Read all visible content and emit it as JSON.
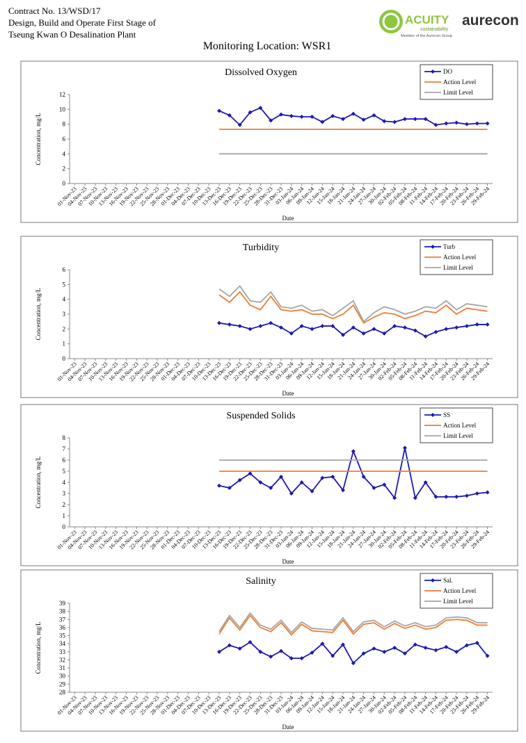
{
  "header": {
    "contract": [
      "Contract No. 13/WSD/17",
      "Design, Build and Operate First Stage of",
      "Tseung Kwan O Desalination Plant"
    ],
    "logo_acuity": "ACUITY",
    "logo_tagline": "sustainability",
    "logo_member": "Member of the Aurecon Group",
    "logo_aurecon": "aurecon",
    "title": "Monitoring Location: WSR1"
  },
  "chart_data": [
    {
      "type": "line",
      "title": "Dissolved Oxygen",
      "y_label": "Concentration, mg/L",
      "x_label": "Date",
      "categories": [
        "01-Nov-23",
        "04-Nov-23",
        "07-Nov-23",
        "10-Nov-23",
        "13-Nov-23",
        "16-Nov-23",
        "19-Nov-23",
        "22-Nov-23",
        "25-Nov-23",
        "28-Nov-23",
        "01-Dec-23",
        "04-Dec-23",
        "07-Dec-23",
        "10-Dec-23",
        "13-Dec-23",
        "16-Dec-23",
        "19-Dec-23",
        "22-Dec-23",
        "25-Dec-23",
        "28-Dec-23",
        "31-Dec-23",
        "03-Jan-24",
        "06-Jan-24",
        "09-Jan-24",
        "12-Jan-24",
        "15-Jan-24",
        "18-Jan-24",
        "21-Jan-24",
        "24-Jan-24",
        "27-Jan-24",
        "30-Jan-24",
        "02-Feb-24",
        "05-Feb-24",
        "08-Feb-24",
        "11-Feb-24",
        "14-Feb-24",
        "17-Feb-24",
        "20-Feb-24",
        "23-Feb-24",
        "26-Feb-24",
        "29-Feb-24"
      ],
      "series": [
        {
          "name": "DO",
          "color": "#1a1ab0",
          "marker": "diamond",
          "values": [
            null,
            null,
            null,
            null,
            null,
            null,
            null,
            null,
            null,
            null,
            null,
            null,
            null,
            null,
            9.8,
            9.2,
            7.9,
            9.6,
            10.2,
            8.5,
            9.3,
            9.1,
            9.0,
            9.0,
            8.3,
            9.1,
            8.7,
            9.4,
            8.6,
            9.2,
            8.4,
            8.3,
            8.7,
            8.7,
            8.7,
            7.9,
            8.1,
            8.2,
            8.0,
            8.1,
            8.1
          ]
        },
        {
          "name": "Action Level",
          "color": "#ed7d31",
          "values": [
            null,
            null,
            null,
            null,
            null,
            null,
            null,
            null,
            null,
            null,
            null,
            null,
            null,
            null,
            7.3,
            7.3,
            7.3,
            7.3,
            7.3,
            7.3,
            7.3,
            7.3,
            7.3,
            7.3,
            7.3,
            7.3,
            7.3,
            7.3,
            7.3,
            7.3,
            7.3,
            7.3,
            7.3,
            7.3,
            7.3,
            7.3,
            7.3,
            7.3,
            7.3,
            7.3,
            7.3
          ]
        },
        {
          "name": "Limit Level",
          "color": "#a5a5a5",
          "values": [
            null,
            null,
            null,
            null,
            null,
            null,
            null,
            null,
            null,
            null,
            null,
            null,
            null,
            null,
            4,
            4,
            4,
            4,
            4,
            4,
            4,
            4,
            4,
            4,
            4,
            4,
            4,
            4,
            4,
            4,
            4,
            4,
            4,
            4,
            4,
            4,
            4,
            4,
            4,
            4,
            4
          ]
        }
      ],
      "ylim": [
        0,
        12
      ],
      "yticks": [
        0,
        2,
        4,
        6,
        8,
        10,
        12
      ],
      "grid": false,
      "legend": "top-right"
    },
    {
      "type": "line",
      "title": "Turbidity",
      "y_label": "Concentration, mg/L",
      "x_label": "Date",
      "categories": [
        "01-Nov-23",
        "04-Nov-23",
        "07-Nov-23",
        "10-Nov-23",
        "13-Nov-23",
        "16-Nov-23",
        "19-Nov-23",
        "22-Nov-23",
        "25-Nov-23",
        "28-Nov-23",
        "01-Dec-23",
        "04-Dec-23",
        "07-Dec-23",
        "10-Dec-23",
        "13-Dec-23",
        "16-Dec-23",
        "19-Dec-23",
        "22-Dec-23",
        "25-Dec-23",
        "28-Dec-23",
        "31-Dec-23",
        "03-Jan-24",
        "06-Jan-24",
        "09-Jan-24",
        "12-Jan-24",
        "15-Jan-24",
        "18-Jan-24",
        "21-Jan-24",
        "24-Jan-24",
        "27-Jan-24",
        "30-Jan-24",
        "02-Feb-24",
        "05-Feb-24",
        "08-Feb-24",
        "11-Feb-24",
        "14-Feb-24",
        "17-Feb-24",
        "20-Feb-24",
        "23-Feb-24",
        "26-Feb-24",
        "29-Feb-24"
      ],
      "series": [
        {
          "name": "Turb",
          "color": "#1a1ab0",
          "marker": "diamond",
          "values": [
            null,
            null,
            null,
            null,
            null,
            null,
            null,
            null,
            null,
            null,
            null,
            null,
            null,
            null,
            2.4,
            2.3,
            2.2,
            2.0,
            2.2,
            2.4,
            2.1,
            1.7,
            2.2,
            2.0,
            2.2,
            2.2,
            1.6,
            2.1,
            1.7,
            2.0,
            1.7,
            2.2,
            2.1,
            1.9,
            1.5,
            1.8,
            2.0,
            2.1,
            2.2,
            2.3,
            2.3
          ]
        },
        {
          "name": "Action Level",
          "color": "#ed7d31",
          "values": [
            null,
            null,
            null,
            null,
            null,
            null,
            null,
            null,
            null,
            null,
            null,
            null,
            null,
            null,
            4.3,
            3.8,
            4.5,
            3.6,
            3.3,
            4.2,
            3.3,
            3.2,
            3.3,
            3.0,
            3.0,
            2.7,
            3.0,
            3.6,
            2.4,
            2.8,
            3.1,
            3.0,
            2.7,
            2.9,
            3.2,
            3.1,
            3.6,
            3.0,
            3.4,
            3.3,
            3.2
          ]
        },
        {
          "name": "Limit Level",
          "color": "#a5a5a5",
          "values": [
            null,
            null,
            null,
            null,
            null,
            null,
            null,
            null,
            null,
            null,
            null,
            null,
            null,
            null,
            4.7,
            4.2,
            4.9,
            3.9,
            3.8,
            4.5,
            3.5,
            3.4,
            3.6,
            3.2,
            3.3,
            2.9,
            3.4,
            3.9,
            2.5,
            3.1,
            3.5,
            3.3,
            3.0,
            3.2,
            3.5,
            3.4,
            3.9,
            3.3,
            3.7,
            3.6,
            3.5
          ]
        }
      ],
      "ylim": [
        0,
        6
      ],
      "yticks": [
        0,
        1,
        2,
        3,
        4,
        5,
        6
      ],
      "grid": false,
      "legend": "top-right"
    },
    {
      "type": "line",
      "title": "Suspended Solids",
      "y_label": "Concentration, mg/L",
      "x_label": "Date",
      "categories": [
        "01-Nov-23",
        "04-Nov-23",
        "07-Nov-23",
        "10-Nov-23",
        "13-Nov-23",
        "16-Nov-23",
        "19-Nov-23",
        "22-Nov-23",
        "25-Nov-23",
        "28-Nov-23",
        "01-Dec-23",
        "04-Dec-23",
        "07-Dec-23",
        "10-Dec-23",
        "13-Dec-23",
        "16-Dec-23",
        "19-Dec-23",
        "22-Dec-23",
        "25-Dec-23",
        "28-Dec-23",
        "31-Dec-23",
        "03-Jan-24",
        "06-Jan-24",
        "09-Jan-24",
        "12-Jan-24",
        "15-Jan-24",
        "18-Jan-24",
        "21-Jan-24",
        "24-Jan-24",
        "27-Jan-24",
        "30-Jan-24",
        "02-Feb-24",
        "05-Feb-24",
        "08-Feb-24",
        "11-Feb-24",
        "14-Feb-24",
        "17-Feb-24",
        "20-Feb-24",
        "23-Feb-24",
        "26-Feb-24",
        "29-Feb-24"
      ],
      "series": [
        {
          "name": "SS",
          "color": "#1a1ab0",
          "marker": "diamond",
          "values": [
            null,
            null,
            null,
            null,
            null,
            null,
            null,
            null,
            null,
            null,
            null,
            null,
            null,
            null,
            3.7,
            3.5,
            4.2,
            4.8,
            4.0,
            3.5,
            4.5,
            3.0,
            4.0,
            3.2,
            4.4,
            4.5,
            3.3,
            6.8,
            4.5,
            3.5,
            3.8,
            2.6,
            7.1,
            2.6,
            4.0,
            2.7,
            2.7,
            2.7,
            2.8,
            3.0,
            3.1
          ]
        },
        {
          "name": "Action Level",
          "color": "#ed7d31",
          "values": [
            null,
            null,
            null,
            null,
            null,
            null,
            null,
            null,
            null,
            null,
            null,
            null,
            null,
            null,
            5,
            5,
            5,
            5,
            5,
            5,
            5,
            5,
            5,
            5,
            5,
            5,
            5,
            5,
            5,
            5,
            5,
            5,
            5,
            5,
            5,
            5,
            5,
            5,
            5,
            5,
            5
          ]
        },
        {
          "name": "Limit Level",
          "color": "#a5a5a5",
          "values": [
            null,
            null,
            null,
            null,
            null,
            null,
            null,
            null,
            null,
            null,
            null,
            null,
            null,
            null,
            6,
            6,
            6,
            6,
            6,
            6,
            6,
            6,
            6,
            6,
            6,
            6,
            6,
            6,
            6,
            6,
            6,
            6,
            6,
            6,
            6,
            6,
            6,
            6,
            6,
            6,
            6
          ]
        }
      ],
      "ylim": [
        0,
        8
      ],
      "yticks": [
        0,
        1,
        2,
        3,
        4,
        5,
        6,
        7,
        8
      ],
      "grid": false,
      "legend": "top-right"
    },
    {
      "type": "line",
      "title": "Salinity",
      "y_label": "Concentration, mg/L",
      "x_label": "Date",
      "categories": [
        "01-Nov-23",
        "04-Nov-23",
        "07-Nov-23",
        "10-Nov-23",
        "13-Nov-23",
        "16-Nov-23",
        "19-Nov-23",
        "22-Nov-23",
        "25-Nov-23",
        "28-Nov-23",
        "01-Dec-23",
        "04-Dec-23",
        "07-Dec-23",
        "10-Dec-23",
        "13-Dec-23",
        "16-Dec-23",
        "19-Dec-23",
        "22-Dec-23",
        "25-Dec-23",
        "28-Dec-23",
        "31-Dec-23",
        "03-Jan-24",
        "06-Jan-24",
        "09-Jan-24",
        "12-Jan-24",
        "15-Jan-24",
        "18-Jan-24",
        "21-Jan-24",
        "24-Jan-24",
        "27-Jan-24",
        "30-Jan-24",
        "02-Feb-24",
        "05-Feb-24",
        "08-Feb-24",
        "11-Feb-24",
        "14-Feb-24",
        "17-Feb-24",
        "20-Feb-24",
        "23-Feb-24",
        "26-Feb-24",
        "29-Feb-24"
      ],
      "series": [
        {
          "name": "Sal.",
          "color": "#1a1ab0",
          "marker": "diamond",
          "values": [
            null,
            null,
            null,
            null,
            null,
            null,
            null,
            null,
            null,
            null,
            null,
            null,
            null,
            null,
            33.0,
            33.8,
            33.4,
            34.2,
            33.0,
            32.4,
            33.1,
            32.2,
            32.2,
            32.9,
            34.0,
            32.5,
            33.9,
            31.6,
            32.8,
            33.4,
            33.0,
            33.5,
            32.8,
            33.9,
            33.5,
            33.2,
            33.6,
            33.0,
            33.8,
            34.1,
            32.5
          ]
        },
        {
          "name": "Action Level",
          "color": "#ed7d31",
          "values": [
            null,
            null,
            null,
            null,
            null,
            null,
            null,
            null,
            null,
            null,
            null,
            null,
            null,
            null,
            35.2,
            37.2,
            35.7,
            37.5,
            36.0,
            35.5,
            36.6,
            35.1,
            36.4,
            35.6,
            35.5,
            35.4,
            36.9,
            35.2,
            36.4,
            36.6,
            35.8,
            36.5,
            35.9,
            36.3,
            35.8,
            36.0,
            36.9,
            37.0,
            36.9,
            36.3,
            36.3
          ]
        },
        {
          "name": "Limit Level",
          "color": "#a5a5a5",
          "values": [
            null,
            null,
            null,
            null,
            null,
            null,
            null,
            null,
            null,
            null,
            null,
            null,
            null,
            null,
            35.5,
            37.5,
            36.0,
            37.8,
            36.3,
            35.8,
            36.9,
            35.4,
            36.7,
            35.9,
            35.8,
            35.7,
            37.2,
            35.5,
            36.7,
            36.9,
            36.1,
            36.8,
            36.2,
            36.6,
            36.1,
            36.3,
            37.2,
            37.3,
            37.2,
            36.6,
            36.6
          ]
        }
      ],
      "ylim": [
        28,
        39
      ],
      "yticks": [
        28,
        29,
        30,
        31,
        32,
        33,
        34,
        35,
        36,
        37,
        38,
        39
      ],
      "grid": false,
      "legend": "top-right"
    }
  ]
}
